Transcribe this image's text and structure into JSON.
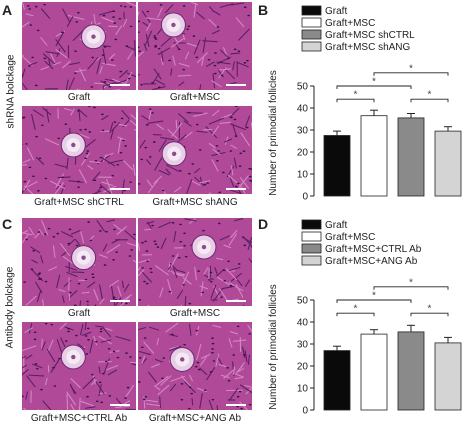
{
  "panels": {
    "A": {
      "letter": "A",
      "side_label": "shRNA bolckage",
      "images": [
        {
          "caption": "Graft"
        },
        {
          "caption": "Graft+MSC"
        },
        {
          "caption": "Graft+MSC shCTRL"
        },
        {
          "caption": "Graft+MSC shANG"
        }
      ]
    },
    "B": {
      "letter": "B"
    },
    "C": {
      "letter": "C",
      "side_label": "Antibody bolckage",
      "images": [
        {
          "caption": "Graft"
        },
        {
          "caption": "Graft+MSC"
        },
        {
          "caption": "Graft+MSC+CTRL Ab"
        },
        {
          "caption": "Graft+MSC+ANG Ab"
        }
      ]
    },
    "D": {
      "letter": "D"
    }
  },
  "colors": {
    "tissue": "#b04a98",
    "bar_black": "#0a0a0a",
    "bar_white": "#ffffff",
    "bar_dark_gray": "#8a8a8a",
    "bar_light_gray": "#d4d4d4"
  },
  "chart_data": [
    {
      "type": "bar",
      "panel": "B",
      "categories": [
        "Graft",
        "Graft+MSC",
        "Graft+MSC shCTRL",
        "Graft+MSC shANG"
      ],
      "values": [
        27.5,
        36.5,
        35.5,
        29.5
      ],
      "errors": [
        2,
        2.5,
        2,
        2
      ],
      "ylabel": "Number of primodial follicles",
      "ylim": [
        0,
        50
      ],
      "yticks": [
        0,
        10,
        20,
        30,
        40,
        50
      ],
      "legend": [
        "Graft",
        "Graft+MSC",
        "Graft+MSC shCTRL",
        "Graft+MSC shANG"
      ],
      "legend_position": "top",
      "bar_colors": [
        "#0a0a0a",
        "#ffffff",
        "#8a8a8a",
        "#d4d4d4"
      ],
      "significance": [
        {
          "from": 0,
          "to": 1,
          "label": "*"
        },
        {
          "from": 2,
          "to": 3,
          "label": "*"
        },
        {
          "from": 0,
          "to": 2,
          "label": "*"
        },
        {
          "from": 1,
          "to": 3,
          "label": "*"
        }
      ]
    },
    {
      "type": "bar",
      "panel": "D",
      "categories": [
        "Graft",
        "Graft+MSC",
        "Graft+MSC+CTRL Ab",
        "Graft+MSC+ANG Ab"
      ],
      "values": [
        27,
        34.5,
        35.5,
        30.5
      ],
      "errors": [
        2,
        2,
        3,
        2.5
      ],
      "ylabel": "Number of primodial follicles",
      "ylim": [
        0,
        50
      ],
      "yticks": [
        0,
        10,
        20,
        30,
        40,
        50
      ],
      "legend": [
        "Graft",
        "Graft+MSC",
        "Graft+MSC+CTRL Ab",
        "Graft+MSC+ANG Ab"
      ],
      "legend_position": "top",
      "bar_colors": [
        "#0a0a0a",
        "#ffffff",
        "#8a8a8a",
        "#d4d4d4"
      ],
      "significance": [
        {
          "from": 0,
          "to": 1,
          "label": "*"
        },
        {
          "from": 2,
          "to": 3,
          "label": "*"
        },
        {
          "from": 0,
          "to": 2,
          "label": "*"
        },
        {
          "from": 1,
          "to": 3,
          "label": "*"
        }
      ]
    }
  ]
}
